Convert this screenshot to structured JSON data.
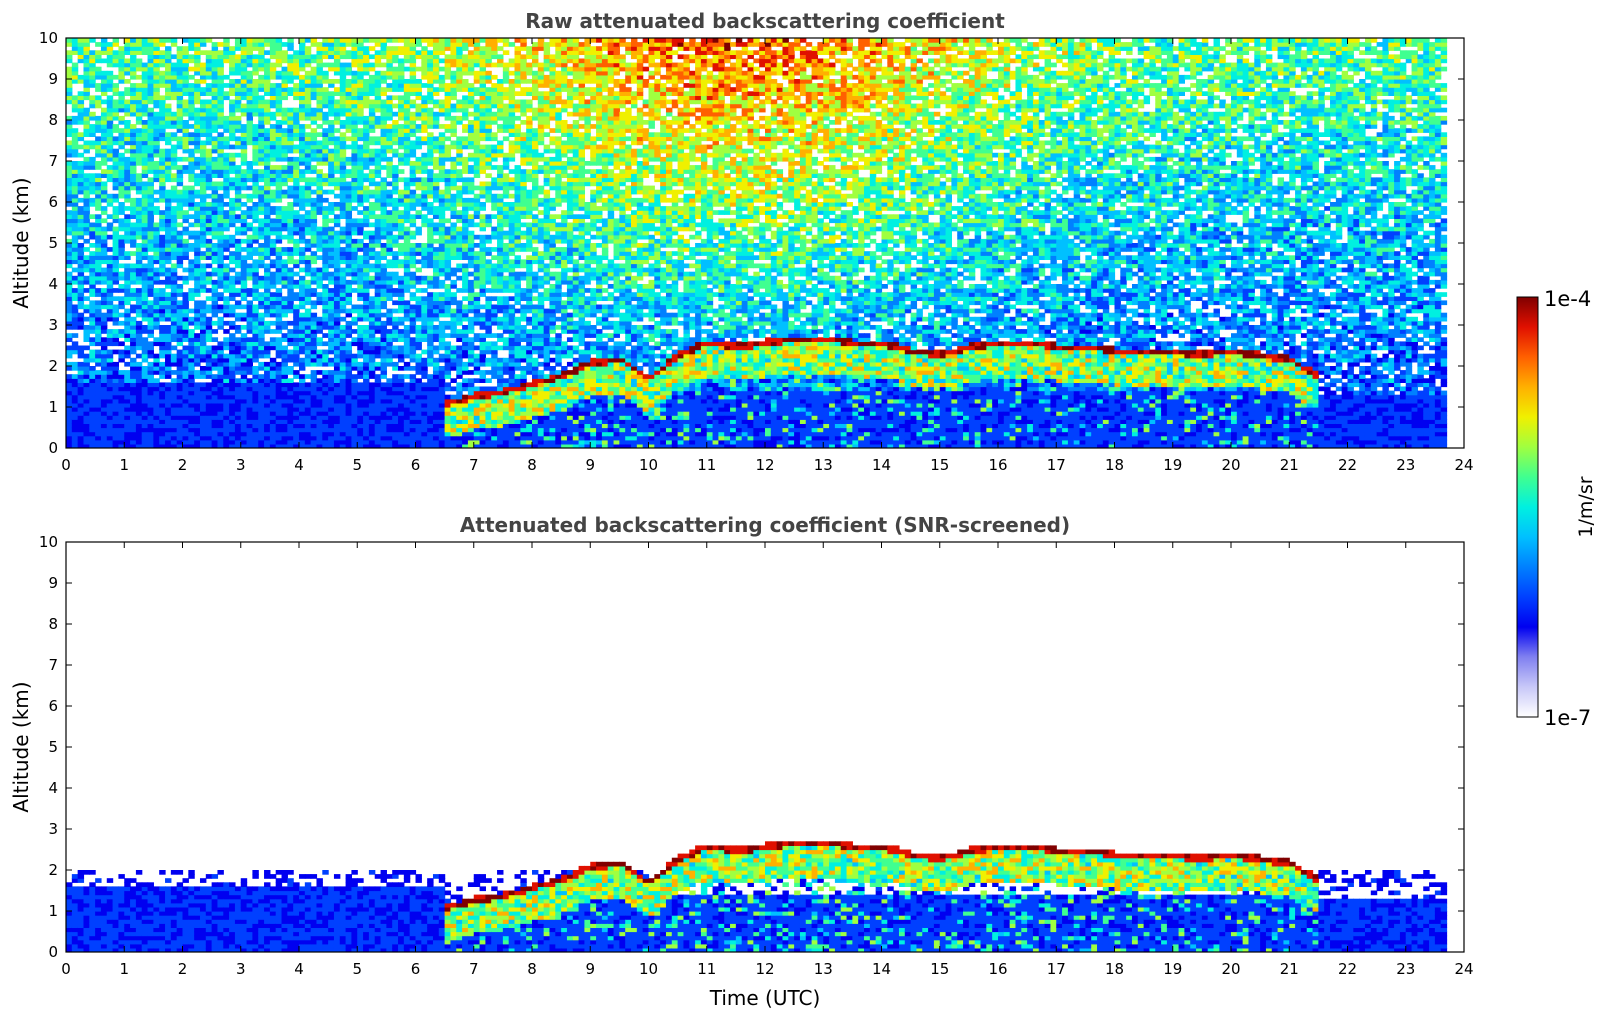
{
  "chart_data": [
    {
      "type": "heatmap",
      "title": "Raw attenuated backscattering coefficient",
      "xlabel": "",
      "ylabel": "Altitude (km)",
      "xlim": [
        0,
        24
      ],
      "ylim": [
        0,
        10
      ],
      "x_ticks": [
        0,
        1,
        2,
        3,
        4,
        5,
        6,
        7,
        8,
        9,
        10,
        11,
        12,
        13,
        14,
        15,
        16,
        17,
        18,
        19,
        20,
        21,
        22,
        23,
        24
      ],
      "y_ticks": [
        0,
        1,
        2,
        3,
        4,
        5,
        6,
        7,
        8,
        9,
        10
      ],
      "data_extent_x": [
        0,
        23.7
      ],
      "screened": false,
      "cloud_layer": {
        "time": [
          6.5,
          7,
          7.5,
          8,
          8.5,
          9,
          9.5,
          10,
          10.5,
          11,
          11.5,
          12,
          12.5,
          13,
          13.5,
          14,
          14.5,
          15,
          15.5,
          16,
          16.5,
          17,
          17.5,
          18,
          18.5,
          19,
          19.5,
          20,
          20.5,
          21,
          21.5
        ],
        "top_km": [
          1.1,
          1.3,
          1.4,
          1.6,
          1.8,
          2.1,
          2.2,
          1.7,
          2.3,
          2.6,
          2.5,
          2.6,
          2.7,
          2.7,
          2.6,
          2.6,
          2.4,
          2.3,
          2.5,
          2.6,
          2.6,
          2.5,
          2.5,
          2.4,
          2.4,
          2.4,
          2.3,
          2.4,
          2.3,
          2.2,
          1.8
        ]
      }
    },
    {
      "type": "heatmap",
      "title": "Attenuated backscattering coefficient (SNR-screened)",
      "xlabel": "Time (UTC)",
      "ylabel": "Altitude (km)",
      "xlim": [
        0,
        24
      ],
      "ylim": [
        0,
        10
      ],
      "x_ticks": [
        0,
        1,
        2,
        3,
        4,
        5,
        6,
        7,
        8,
        9,
        10,
        11,
        12,
        13,
        14,
        15,
        16,
        17,
        18,
        19,
        20,
        21,
        22,
        23,
        24
      ],
      "y_ticks": [
        0,
        1,
        2,
        3,
        4,
        5,
        6,
        7,
        8,
        9,
        10
      ],
      "data_extent_x": [
        0,
        23.7
      ],
      "screened": true,
      "cloud_layer": {
        "time": [
          6.5,
          7,
          7.5,
          8,
          8.5,
          9,
          9.5,
          10,
          10.5,
          11,
          11.5,
          12,
          12.5,
          13,
          13.5,
          14,
          14.5,
          15,
          15.5,
          16,
          16.5,
          17,
          17.5,
          18,
          18.5,
          19,
          19.5,
          20,
          20.5,
          21,
          21.5
        ],
        "top_km": [
          1.1,
          1.3,
          1.4,
          1.6,
          1.8,
          2.1,
          2.2,
          1.7,
          2.3,
          2.6,
          2.5,
          2.6,
          2.7,
          2.7,
          2.6,
          2.6,
          2.4,
          2.3,
          2.5,
          2.6,
          2.6,
          2.5,
          2.5,
          2.4,
          2.4,
          2.4,
          2.3,
          2.4,
          2.3,
          2.2,
          1.8
        ]
      }
    }
  ],
  "colorbar": {
    "label": "1/m/sr",
    "max_label": "1e-4",
    "min_label": "1e-7",
    "scale": "log",
    "range": [
      1e-07,
      0.0001
    ],
    "colormap": [
      "#ffffff",
      "#c8c8f8",
      "#8080f0",
      "#0000f0",
      "#0040ff",
      "#0080ff",
      "#00c0ff",
      "#00f0e0",
      "#40ff90",
      "#a0ff40",
      "#f0f000",
      "#ffb000",
      "#ff6000",
      "#e01000",
      "#800000"
    ]
  }
}
